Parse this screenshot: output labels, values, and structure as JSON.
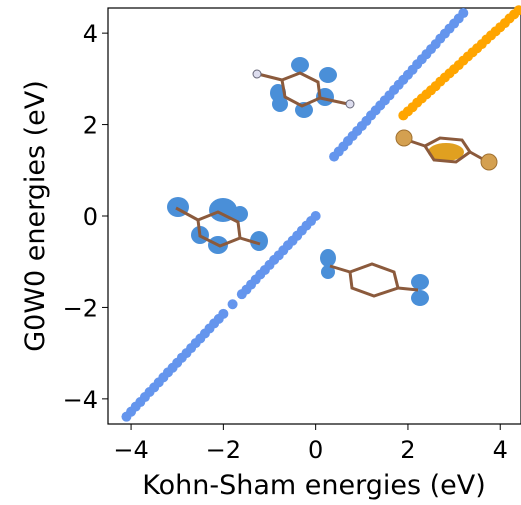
{
  "chart_data": {
    "type": "scatter",
    "xlabel": "Kohn-Sham energies (eV)",
    "ylabel": "G0W0 energies (eV)",
    "xlim": [
      -4.5,
      4.45
    ],
    "ylim": [
      -4.55,
      4.55
    ],
    "xticks": [
      {
        "value": -4,
        "label": "−4"
      },
      {
        "value": -2,
        "label": "−2"
      },
      0,
      2,
      4
    ],
    "yticks": [
      {
        "value": -4,
        "label": "−4"
      },
      {
        "value": -2,
        "label": "−2"
      },
      0,
      2,
      4
    ],
    "series": [
      {
        "color": "#6495ed",
        "x": [
          -4.1,
          -4.0,
          -3.9,
          -3.8,
          -3.7,
          -3.6,
          -3.5,
          -3.4,
          -3.3,
          -3.2,
          -3.1,
          -3.0,
          -2.9,
          -2.8,
          -2.7,
          -2.6,
          -2.5,
          -2.4,
          -2.3,
          -2.2,
          -2.1,
          -2.0,
          -1.8,
          -1.6,
          -1.5,
          -1.4,
          -1.3,
          -1.2,
          -1.1,
          -1.0,
          -0.9,
          -0.8,
          -0.7,
          -0.6,
          -0.5,
          -0.4,
          -0.3,
          -0.2,
          -0.1,
          0.0
        ],
        "values": [
          -4.39,
          -4.28,
          -4.17,
          -4.07,
          -3.96,
          -3.85,
          -3.75,
          -3.64,
          -3.53,
          -3.42,
          -3.32,
          -3.21,
          -3.1,
          -3.0,
          -2.89,
          -2.78,
          -2.68,
          -2.57,
          -2.46,
          -2.35,
          -2.25,
          -2.14,
          -1.93,
          -1.71,
          -1.61,
          -1.5,
          -1.39,
          -1.28,
          -1.18,
          -1.07,
          -0.96,
          -0.86,
          -0.75,
          -0.64,
          -0.54,
          -0.43,
          -0.32,
          -0.21,
          -0.11,
          0.0
        ]
      },
      {
        "color": "#6495ed",
        "x": [
          0.4,
          0.5,
          0.6,
          0.7,
          0.8,
          0.9,
          1.0,
          1.1,
          1.2,
          1.3,
          1.4,
          1.5,
          1.6,
          1.7,
          1.8,
          1.9,
          2.0,
          2.1,
          2.2,
          2.3,
          2.4,
          2.5,
          2.6,
          2.7,
          2.8,
          2.9,
          3.0,
          3.1,
          3.2
        ],
        "values": [
          1.3,
          1.41,
          1.52,
          1.64,
          1.75,
          1.86,
          1.97,
          2.08,
          2.2,
          2.31,
          2.42,
          2.53,
          2.64,
          2.76,
          2.87,
          2.98,
          3.09,
          3.2,
          3.32,
          3.43,
          3.54,
          3.65,
          3.76,
          3.88,
          3.99,
          4.1,
          4.21,
          4.32,
          4.44
        ]
      },
      {
        "color": "#ffa500",
        "x": [
          1.9,
          2.0,
          2.1,
          2.2,
          2.3,
          2.4,
          2.5,
          2.6,
          2.7,
          2.8,
          2.9,
          3.0,
          3.1,
          3.2,
          3.3,
          3.4,
          3.5,
          3.6,
          3.7,
          3.8,
          3.9,
          4.0,
          4.1,
          4.2,
          4.3,
          4.4
        ],
        "values": [
          2.2,
          2.29,
          2.38,
          2.48,
          2.57,
          2.66,
          2.75,
          2.84,
          2.94,
          3.03,
          3.12,
          3.21,
          3.3,
          3.4,
          3.49,
          3.58,
          3.67,
          3.76,
          3.86,
          3.95,
          4.04,
          4.13,
          4.22,
          4.32,
          4.41,
          4.5
        ]
      }
    ]
  }
}
